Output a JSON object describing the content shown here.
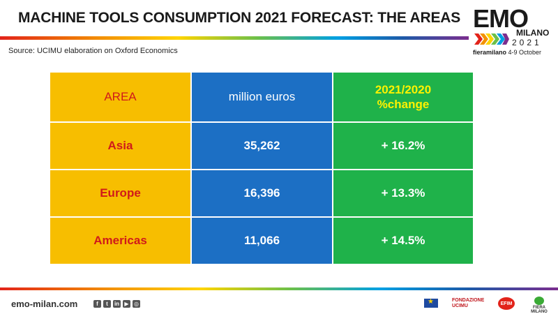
{
  "header": {
    "title": "MACHINE TOOLS CONSUMPTION 2021 FORECAST: THE AREAS",
    "source": "Source: UCIMU elaboration on Oxford Economics"
  },
  "logo": {
    "brand": "EMO",
    "city": "MILANO",
    "year": "2021",
    "venue": "fieramilano",
    "dates": "4-9 October"
  },
  "table": {
    "headers": {
      "area": "AREA",
      "value": "million euros",
      "change_line1": "2021/2020",
      "change_line2": "%change"
    },
    "rows": [
      {
        "area": "Asia",
        "value": "35,262",
        "change": "+ 16.2%"
      },
      {
        "area": "Europe",
        "value": "16,396",
        "change": "+ 13.3%"
      },
      {
        "area": "Americas",
        "value": "11,066",
        "change": "+ 14.5%"
      }
    ]
  },
  "footer": {
    "site": "emo-milan.com",
    "socials": [
      "facebook-icon",
      "twitter-icon",
      "linkedin-icon",
      "youtube-icon",
      "instagram-icon"
    ],
    "partners": {
      "fondazione_line1": "FONDAZIONE",
      "fondazione_line2": "UCIMU",
      "efim": "EFIM",
      "fieramilano": "FIERA MILANO"
    }
  },
  "colors": {
    "area_col": "#f7be00",
    "value_col": "#1c6fc4",
    "change_col": "#1fb24a",
    "area_text": "#d01a1a",
    "header_change_text": "#fff200"
  }
}
